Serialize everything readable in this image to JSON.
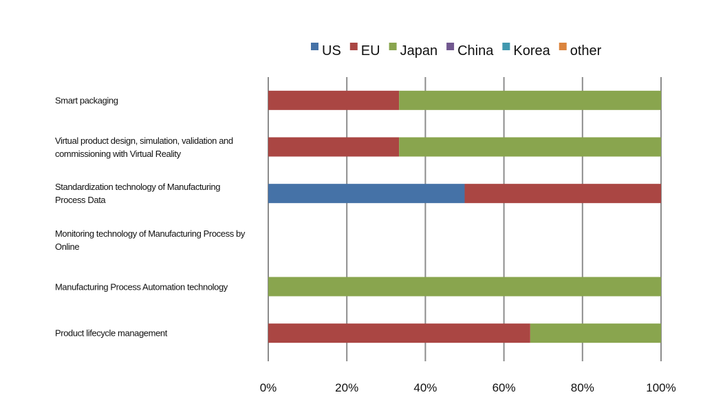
{
  "chart_data": {
    "type": "stacked-bar-horizontal",
    "categories": [
      "Smart packaging",
      "Virtual product design, simulation, validation and commissioning with Virtual Reality",
      "Standardization technology of Manufacturing Process Data",
      "Monitoring technology of Manufacturing Process by Online",
      "Manufacturing Process Automation technology",
      "Product lifecycle management"
    ],
    "series": [
      {
        "name": "US",
        "color": "#4572a7",
        "values": [
          0,
          0,
          50,
          0,
          0,
          0
        ]
      },
      {
        "name": "EU",
        "color": "#aa4643",
        "values": [
          33.3,
          33.3,
          50,
          0,
          0,
          66.7
        ]
      },
      {
        "name": "Japan",
        "color": "#89a54e",
        "values": [
          66.7,
          66.7,
          0,
          0,
          100,
          33.3
        ]
      },
      {
        "name": "China",
        "color": "#71588f",
        "values": [
          0,
          0,
          0,
          0,
          0,
          0
        ]
      },
      {
        "name": "Korea",
        "color": "#4198af",
        "values": [
          0,
          0,
          0,
          0,
          0,
          0
        ]
      },
      {
        "name": "other",
        "color": "#db843d",
        "values": [
          0,
          0,
          0,
          0,
          0,
          0
        ]
      }
    ],
    "xlim": [
      0,
      100
    ],
    "xticks": [
      {
        "value": 0,
        "label": "0%"
      },
      {
        "value": 20,
        "label": "20%"
      },
      {
        "value": 40,
        "label": "40%"
      },
      {
        "value": 60,
        "label": "60%"
      },
      {
        "value": 80,
        "label": "80%"
      },
      {
        "value": 100,
        "label": "100%"
      }
    ],
    "grid": true,
    "legend": "top"
  }
}
